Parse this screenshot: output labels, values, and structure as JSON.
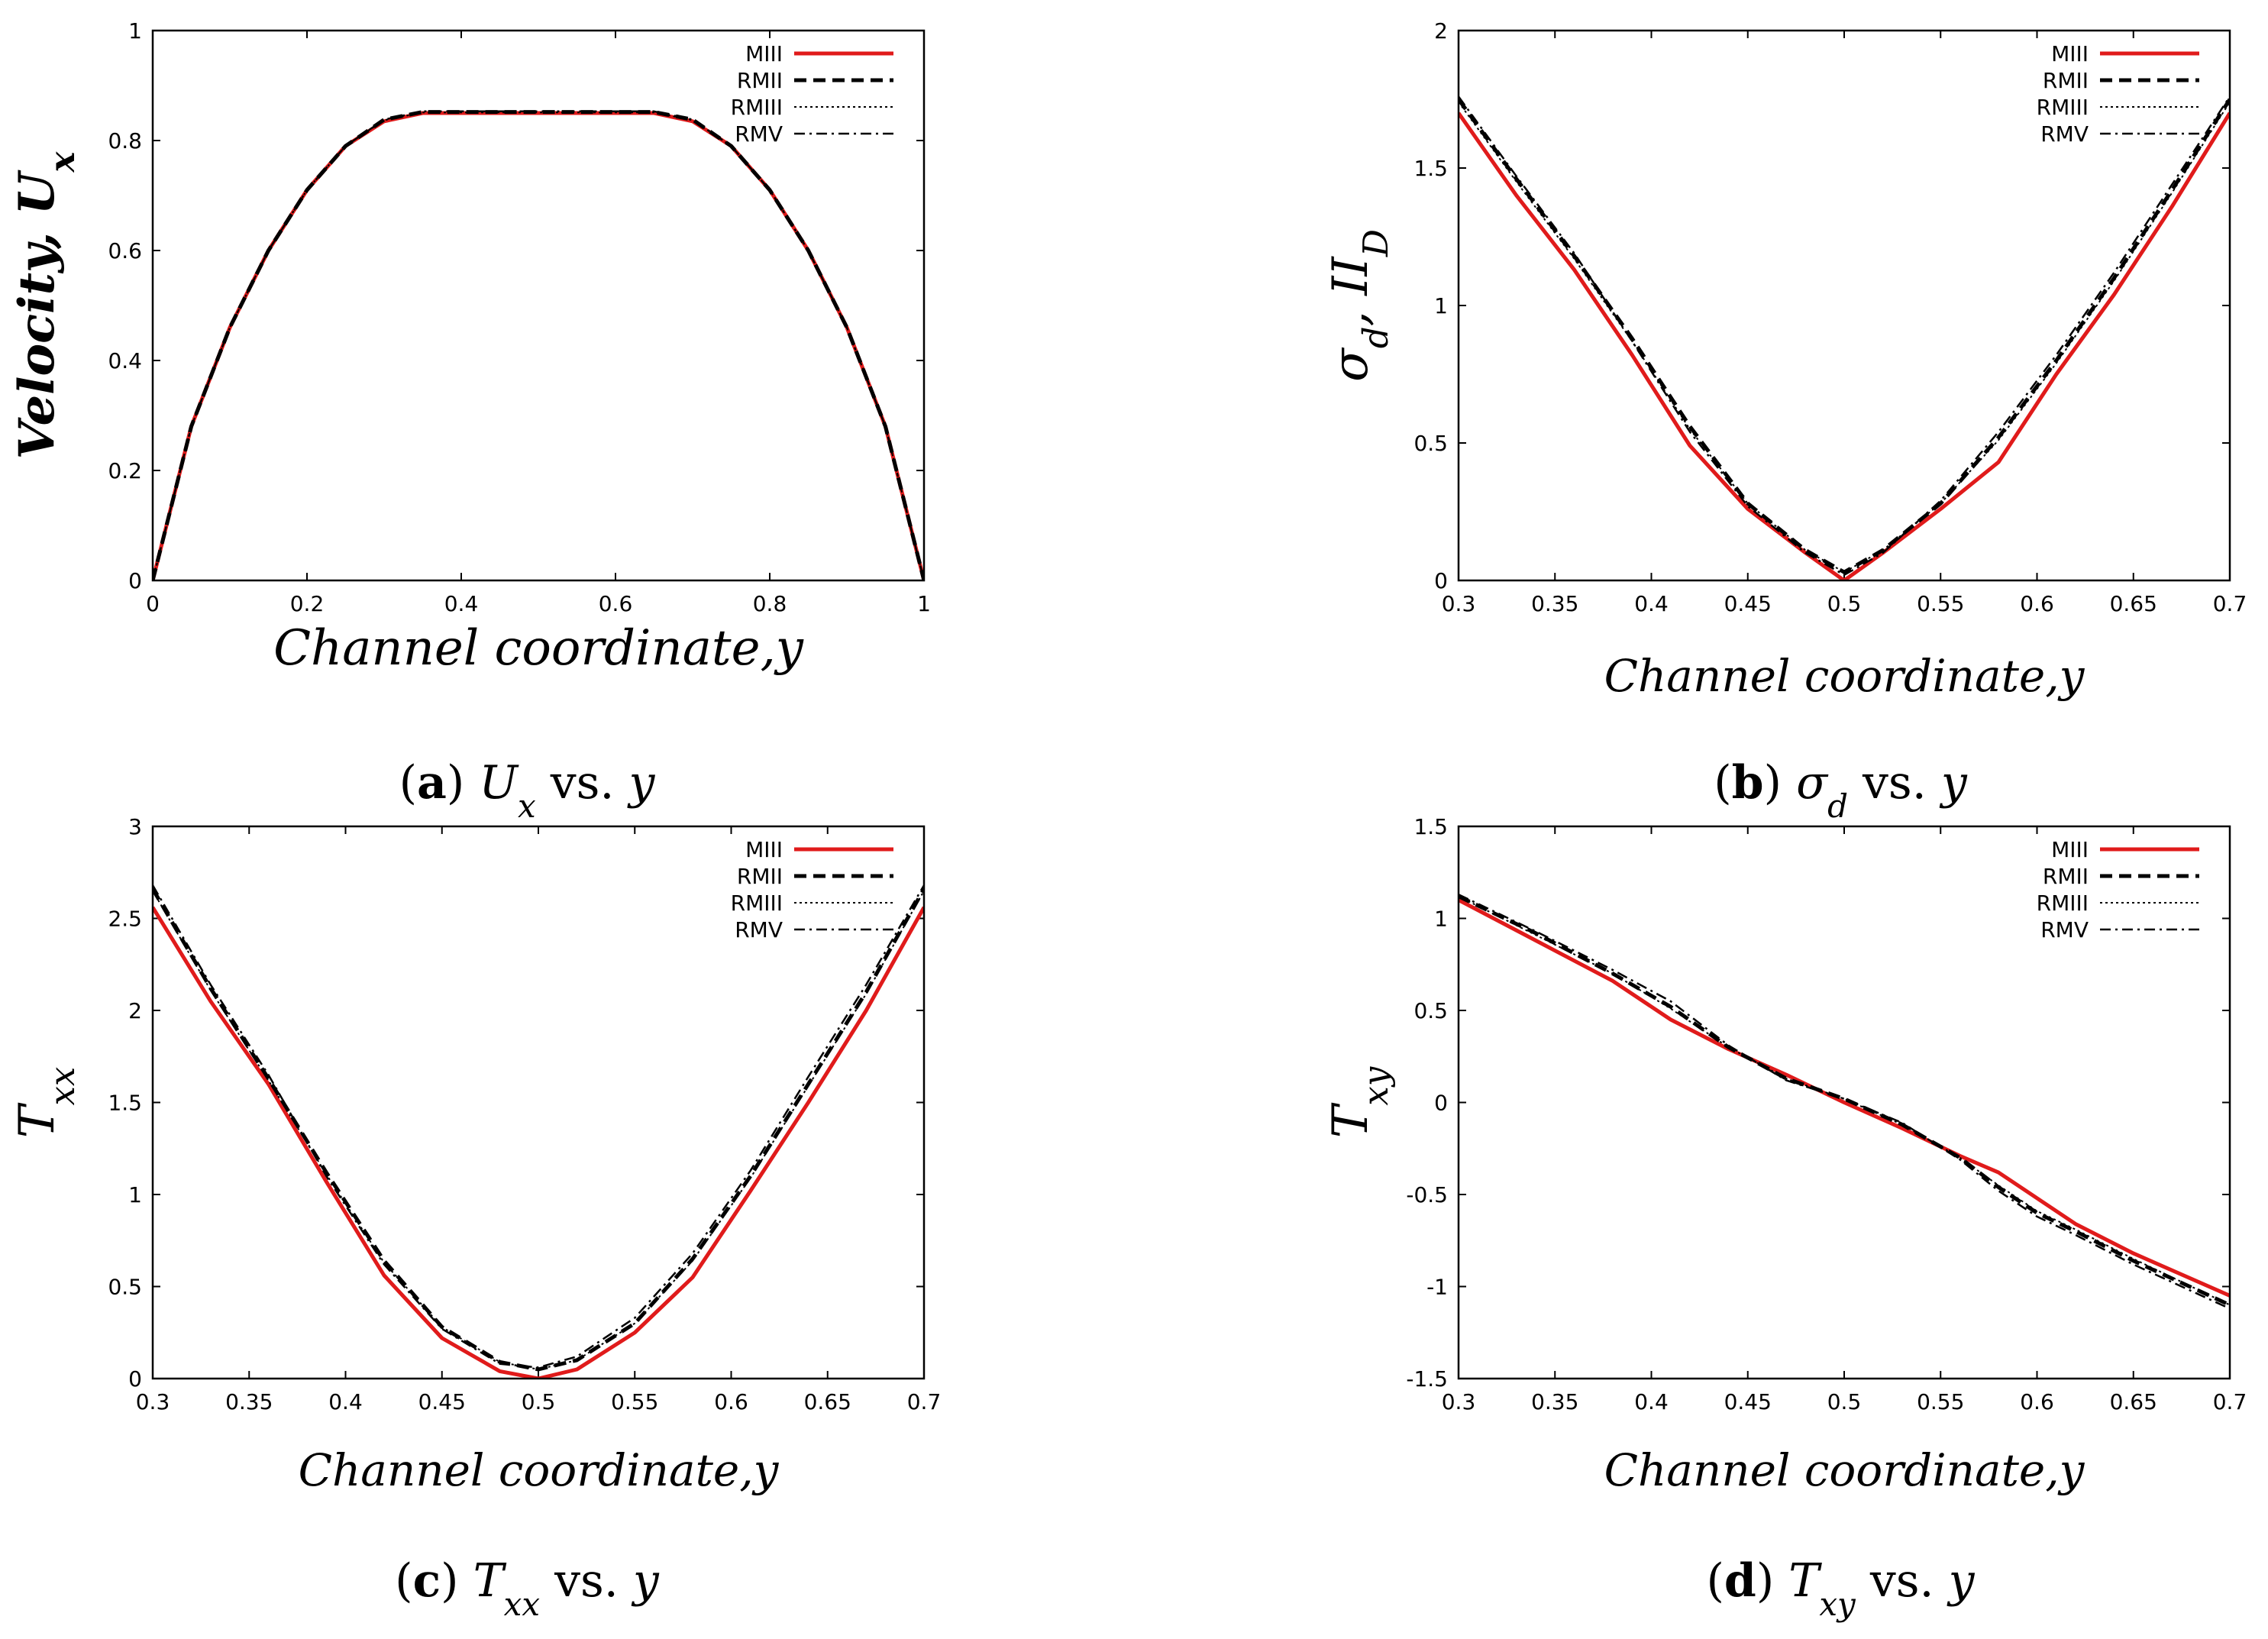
{
  "colors": {
    "miii": "#e01b1b",
    "black": "#000000"
  },
  "chart_data": [
    {
      "id": "a",
      "type": "line",
      "caption": {
        "letter": "a",
        "math": "U",
        "sub": "x",
        "rest": " vs. ",
        "var": "y"
      },
      "xlabel": "Channel coordinate,y",
      "ylabel": "Velocity, U",
      "ylabel_sub": "x",
      "xlim": [
        0,
        1
      ],
      "ylim": [
        0,
        1
      ],
      "xticks": [
        0,
        0.2,
        0.4,
        0.6,
        0.8,
        1
      ],
      "xtick_labels": [
        "0",
        "0.2",
        "0.4",
        "0.6",
        "0.8",
        "1"
      ],
      "yticks": [
        0,
        0.2,
        0.4,
        0.6,
        0.8,
        1
      ],
      "ytick_labels": [
        "0",
        "0.2",
        "0.4",
        "0.6",
        "0.8",
        "1"
      ],
      "legend_position": "top-right",
      "series": [
        {
          "name": "MIII",
          "style": "solid-red",
          "x": [
            0,
            0.05,
            0.1,
            0.15,
            0.2,
            0.25,
            0.3,
            0.35,
            0.4,
            0.5,
            0.6,
            0.65,
            0.7,
            0.75,
            0.8,
            0.85,
            0.9,
            0.95,
            1
          ],
          "y": [
            0,
            0.28,
            0.46,
            0.6,
            0.71,
            0.79,
            0.835,
            0.85,
            0.85,
            0.85,
            0.85,
            0.85,
            0.835,
            0.79,
            0.71,
            0.6,
            0.46,
            0.28,
            0
          ]
        },
        {
          "name": "RMII",
          "style": "dashed",
          "x": [
            0,
            0.05,
            0.1,
            0.15,
            0.2,
            0.25,
            0.3,
            0.35,
            0.4,
            0.5,
            0.6,
            0.65,
            0.7,
            0.75,
            0.8,
            0.85,
            0.9,
            0.95,
            1
          ],
          "y": [
            0,
            0.28,
            0.46,
            0.6,
            0.71,
            0.79,
            0.838,
            0.852,
            0.852,
            0.852,
            0.852,
            0.852,
            0.838,
            0.79,
            0.71,
            0.6,
            0.46,
            0.28,
            0
          ]
        },
        {
          "name": "RMIII",
          "style": "dotted",
          "x": [
            0,
            0.05,
            0.1,
            0.15,
            0.2,
            0.25,
            0.3,
            0.35,
            0.4,
            0.5,
            0.6,
            0.65,
            0.7,
            0.75,
            0.8,
            0.85,
            0.9,
            0.95,
            1
          ],
          "y": [
            0,
            0.28,
            0.46,
            0.6,
            0.71,
            0.79,
            0.837,
            0.851,
            0.851,
            0.851,
            0.851,
            0.851,
            0.837,
            0.79,
            0.71,
            0.6,
            0.46,
            0.28,
            0
          ]
        },
        {
          "name": "RMV",
          "style": "dashdot",
          "x": [
            0,
            0.05,
            0.1,
            0.15,
            0.2,
            0.25,
            0.3,
            0.35,
            0.4,
            0.5,
            0.6,
            0.65,
            0.7,
            0.75,
            0.8,
            0.85,
            0.9,
            0.95,
            1
          ],
          "y": [
            0,
            0.28,
            0.46,
            0.6,
            0.71,
            0.79,
            0.838,
            0.853,
            0.853,
            0.853,
            0.853,
            0.853,
            0.838,
            0.79,
            0.71,
            0.6,
            0.46,
            0.28,
            0
          ]
        }
      ]
    },
    {
      "id": "b",
      "type": "line",
      "caption": {
        "letter": "b",
        "math": "σ",
        "sub": "d",
        "rest": " vs. ",
        "var": "y"
      },
      "xlabel": "Channel coordinate,y",
      "ylabel": "σ",
      "ylabel_sub": "d",
      "ylabel_extra": ", II",
      "ylabel_extra_sub": "D",
      "xlim": [
        0.3,
        0.7
      ],
      "ylim": [
        0,
        2
      ],
      "xticks": [
        0.3,
        0.35,
        0.4,
        0.45,
        0.5,
        0.55,
        0.6,
        0.65,
        0.7
      ],
      "xtick_labels": [
        "0.3",
        "0.35",
        "0.4",
        "0.45",
        "0.5",
        "0.55",
        "0.6",
        "0.65",
        "0.7"
      ],
      "yticks": [
        0,
        0.5,
        1,
        1.5,
        2
      ],
      "ytick_labels": [
        "0",
        "0.5",
        "1",
        "1.5",
        "2"
      ],
      "legend_position": "top-right",
      "series": [
        {
          "name": "MIII",
          "style": "solid-red",
          "x": [
            0.3,
            0.33,
            0.36,
            0.39,
            0.42,
            0.45,
            0.48,
            0.5,
            0.52,
            0.55,
            0.58,
            0.61,
            0.64,
            0.67,
            0.7
          ],
          "y": [
            1.7,
            1.4,
            1.13,
            0.82,
            0.49,
            0.26,
            0.1,
            0.0,
            0.1,
            0.26,
            0.43,
            0.75,
            1.04,
            1.36,
            1.7
          ]
        },
        {
          "name": "RMII",
          "style": "dashed",
          "x": [
            0.3,
            0.33,
            0.36,
            0.39,
            0.42,
            0.45,
            0.48,
            0.5,
            0.52,
            0.55,
            0.58,
            0.61,
            0.64,
            0.67,
            0.7
          ],
          "y": [
            1.75,
            1.46,
            1.18,
            0.88,
            0.56,
            0.28,
            0.11,
            0.03,
            0.11,
            0.28,
            0.52,
            0.8,
            1.1,
            1.42,
            1.75
          ]
        },
        {
          "name": "RMIII",
          "style": "dotted",
          "x": [
            0.3,
            0.33,
            0.36,
            0.39,
            0.42,
            0.45,
            0.48,
            0.5,
            0.52,
            0.55,
            0.58,
            0.61,
            0.64,
            0.67,
            0.7
          ],
          "y": [
            1.74,
            1.45,
            1.17,
            0.87,
            0.55,
            0.28,
            0.11,
            0.03,
            0.11,
            0.28,
            0.51,
            0.79,
            1.09,
            1.41,
            1.74
          ]
        },
        {
          "name": "RMV",
          "style": "dashdot",
          "x": [
            0.3,
            0.33,
            0.36,
            0.39,
            0.42,
            0.45,
            0.48,
            0.5,
            0.52,
            0.55,
            0.58,
            0.61,
            0.64,
            0.67,
            0.7
          ],
          "y": [
            1.76,
            1.47,
            1.19,
            0.87,
            0.54,
            0.27,
            0.1,
            0.02,
            0.1,
            0.29,
            0.54,
            0.82,
            1.12,
            1.44,
            1.76
          ]
        }
      ]
    },
    {
      "id": "c",
      "type": "line",
      "caption": {
        "letter": "c",
        "math": "T",
        "sub": "xx",
        "rest": " vs. ",
        "var": "y"
      },
      "xlabel": "Channel coordinate,y",
      "ylabel": "T",
      "ylabel_sub": "xx",
      "xlim": [
        0.3,
        0.7
      ],
      "ylim": [
        0,
        3
      ],
      "xticks": [
        0.3,
        0.35,
        0.4,
        0.45,
        0.5,
        0.55,
        0.6,
        0.65,
        0.7
      ],
      "xtick_labels": [
        "0.3",
        "0.35",
        "0.4",
        "0.45",
        "0.5",
        "0.55",
        "0.6",
        "0.65",
        "0.7"
      ],
      "yticks": [
        0,
        0.5,
        1,
        1.5,
        2,
        2.5,
        3
      ],
      "ytick_labels": [
        "0",
        "0.5",
        "1",
        "1.5",
        "2",
        "2.5",
        "3"
      ],
      "legend_position": "top-right",
      "series": [
        {
          "name": "MIII",
          "style": "solid-red",
          "x": [
            0.3,
            0.33,
            0.36,
            0.39,
            0.42,
            0.45,
            0.48,
            0.5,
            0.52,
            0.55,
            0.58,
            0.61,
            0.64,
            0.67,
            0.7
          ],
          "y": [
            2.56,
            2.05,
            1.6,
            1.07,
            0.56,
            0.22,
            0.04,
            0.0,
            0.05,
            0.25,
            0.55,
            1.02,
            1.5,
            2.0,
            2.56
          ]
        },
        {
          "name": "RMII",
          "style": "dashed",
          "x": [
            0.3,
            0.33,
            0.36,
            0.39,
            0.42,
            0.45,
            0.48,
            0.5,
            0.52,
            0.55,
            0.58,
            0.61,
            0.64,
            0.67,
            0.7
          ],
          "y": [
            2.66,
            2.12,
            1.63,
            1.12,
            0.64,
            0.28,
            0.09,
            0.05,
            0.1,
            0.3,
            0.65,
            1.1,
            1.6,
            2.1,
            2.66
          ]
        },
        {
          "name": "RMIII",
          "style": "dotted",
          "x": [
            0.3,
            0.33,
            0.36,
            0.39,
            0.42,
            0.45,
            0.48,
            0.5,
            0.52,
            0.55,
            0.58,
            0.61,
            0.64,
            0.67,
            0.7
          ],
          "y": [
            2.65,
            2.11,
            1.62,
            1.11,
            0.63,
            0.28,
            0.09,
            0.05,
            0.1,
            0.3,
            0.64,
            1.09,
            1.59,
            2.09,
            2.65
          ]
        },
        {
          "name": "RMV",
          "style": "dashdot",
          "x": [
            0.3,
            0.33,
            0.36,
            0.39,
            0.42,
            0.45,
            0.48,
            0.5,
            0.52,
            0.55,
            0.58,
            0.61,
            0.64,
            0.67,
            0.7
          ],
          "y": [
            2.68,
            2.14,
            1.65,
            1.1,
            0.62,
            0.27,
            0.08,
            0.06,
            0.12,
            0.33,
            0.68,
            1.13,
            1.64,
            2.14,
            2.68
          ]
        }
      ]
    },
    {
      "id": "d",
      "type": "line",
      "caption": {
        "letter": "d",
        "math": "T",
        "sub": "xy",
        "rest": " vs. ",
        "var": "y"
      },
      "xlabel": "Channel coordinate,y",
      "ylabel": "T",
      "ylabel_sub": "xy",
      "xlim": [
        0.3,
        0.7
      ],
      "ylim": [
        -1.5,
        1.5
      ],
      "xticks": [
        0.3,
        0.35,
        0.4,
        0.45,
        0.5,
        0.55,
        0.6,
        0.65,
        0.7
      ],
      "xtick_labels": [
        "0.3",
        "0.35",
        "0.4",
        "0.45",
        "0.5",
        "0.55",
        "0.6",
        "0.65",
        "0.7"
      ],
      "yticks": [
        -1.5,
        -1,
        -0.5,
        0,
        0.5,
        1,
        1.5
      ],
      "ytick_labels": [
        "-1.5",
        "-1",
        "-0.5",
        "0",
        "0.5",
        "1",
        "1.5"
      ],
      "legend_position": "top-right",
      "series": [
        {
          "name": "MIII",
          "style": "solid-red",
          "x": [
            0.3,
            0.34,
            0.38,
            0.41,
            0.44,
            0.47,
            0.5,
            0.53,
            0.56,
            0.58,
            0.6,
            0.62,
            0.65,
            0.7
          ],
          "y": [
            1.1,
            0.88,
            0.66,
            0.45,
            0.29,
            0.15,
            0.0,
            -0.14,
            -0.29,
            -0.38,
            -0.52,
            -0.66,
            -0.82,
            -1.05
          ]
        },
        {
          "name": "RMII",
          "style": "dashed",
          "x": [
            0.3,
            0.34,
            0.38,
            0.41,
            0.44,
            0.47,
            0.5,
            0.53,
            0.56,
            0.58,
            0.6,
            0.62,
            0.65,
            0.7
          ],
          "y": [
            1.12,
            0.92,
            0.7,
            0.52,
            0.3,
            0.13,
            0.02,
            -0.12,
            -0.3,
            -0.46,
            -0.6,
            -0.7,
            -0.86,
            -1.1
          ]
        },
        {
          "name": "RMIII",
          "style": "dotted",
          "x": [
            0.3,
            0.34,
            0.38,
            0.41,
            0.44,
            0.47,
            0.5,
            0.53,
            0.56,
            0.58,
            0.6,
            0.62,
            0.65,
            0.7
          ],
          "y": [
            1.12,
            0.91,
            0.7,
            0.51,
            0.3,
            0.13,
            0.02,
            -0.12,
            -0.3,
            -0.45,
            -0.59,
            -0.69,
            -0.85,
            -1.1
          ]
        },
        {
          "name": "RMV",
          "style": "dashdot",
          "x": [
            0.3,
            0.34,
            0.38,
            0.41,
            0.44,
            0.47,
            0.5,
            0.53,
            0.56,
            0.58,
            0.6,
            0.62,
            0.65,
            0.7
          ],
          "y": [
            1.13,
            0.93,
            0.72,
            0.55,
            0.31,
            0.12,
            0.02,
            -0.11,
            -0.31,
            -0.48,
            -0.62,
            -0.72,
            -0.88,
            -1.12
          ]
        }
      ]
    }
  ]
}
